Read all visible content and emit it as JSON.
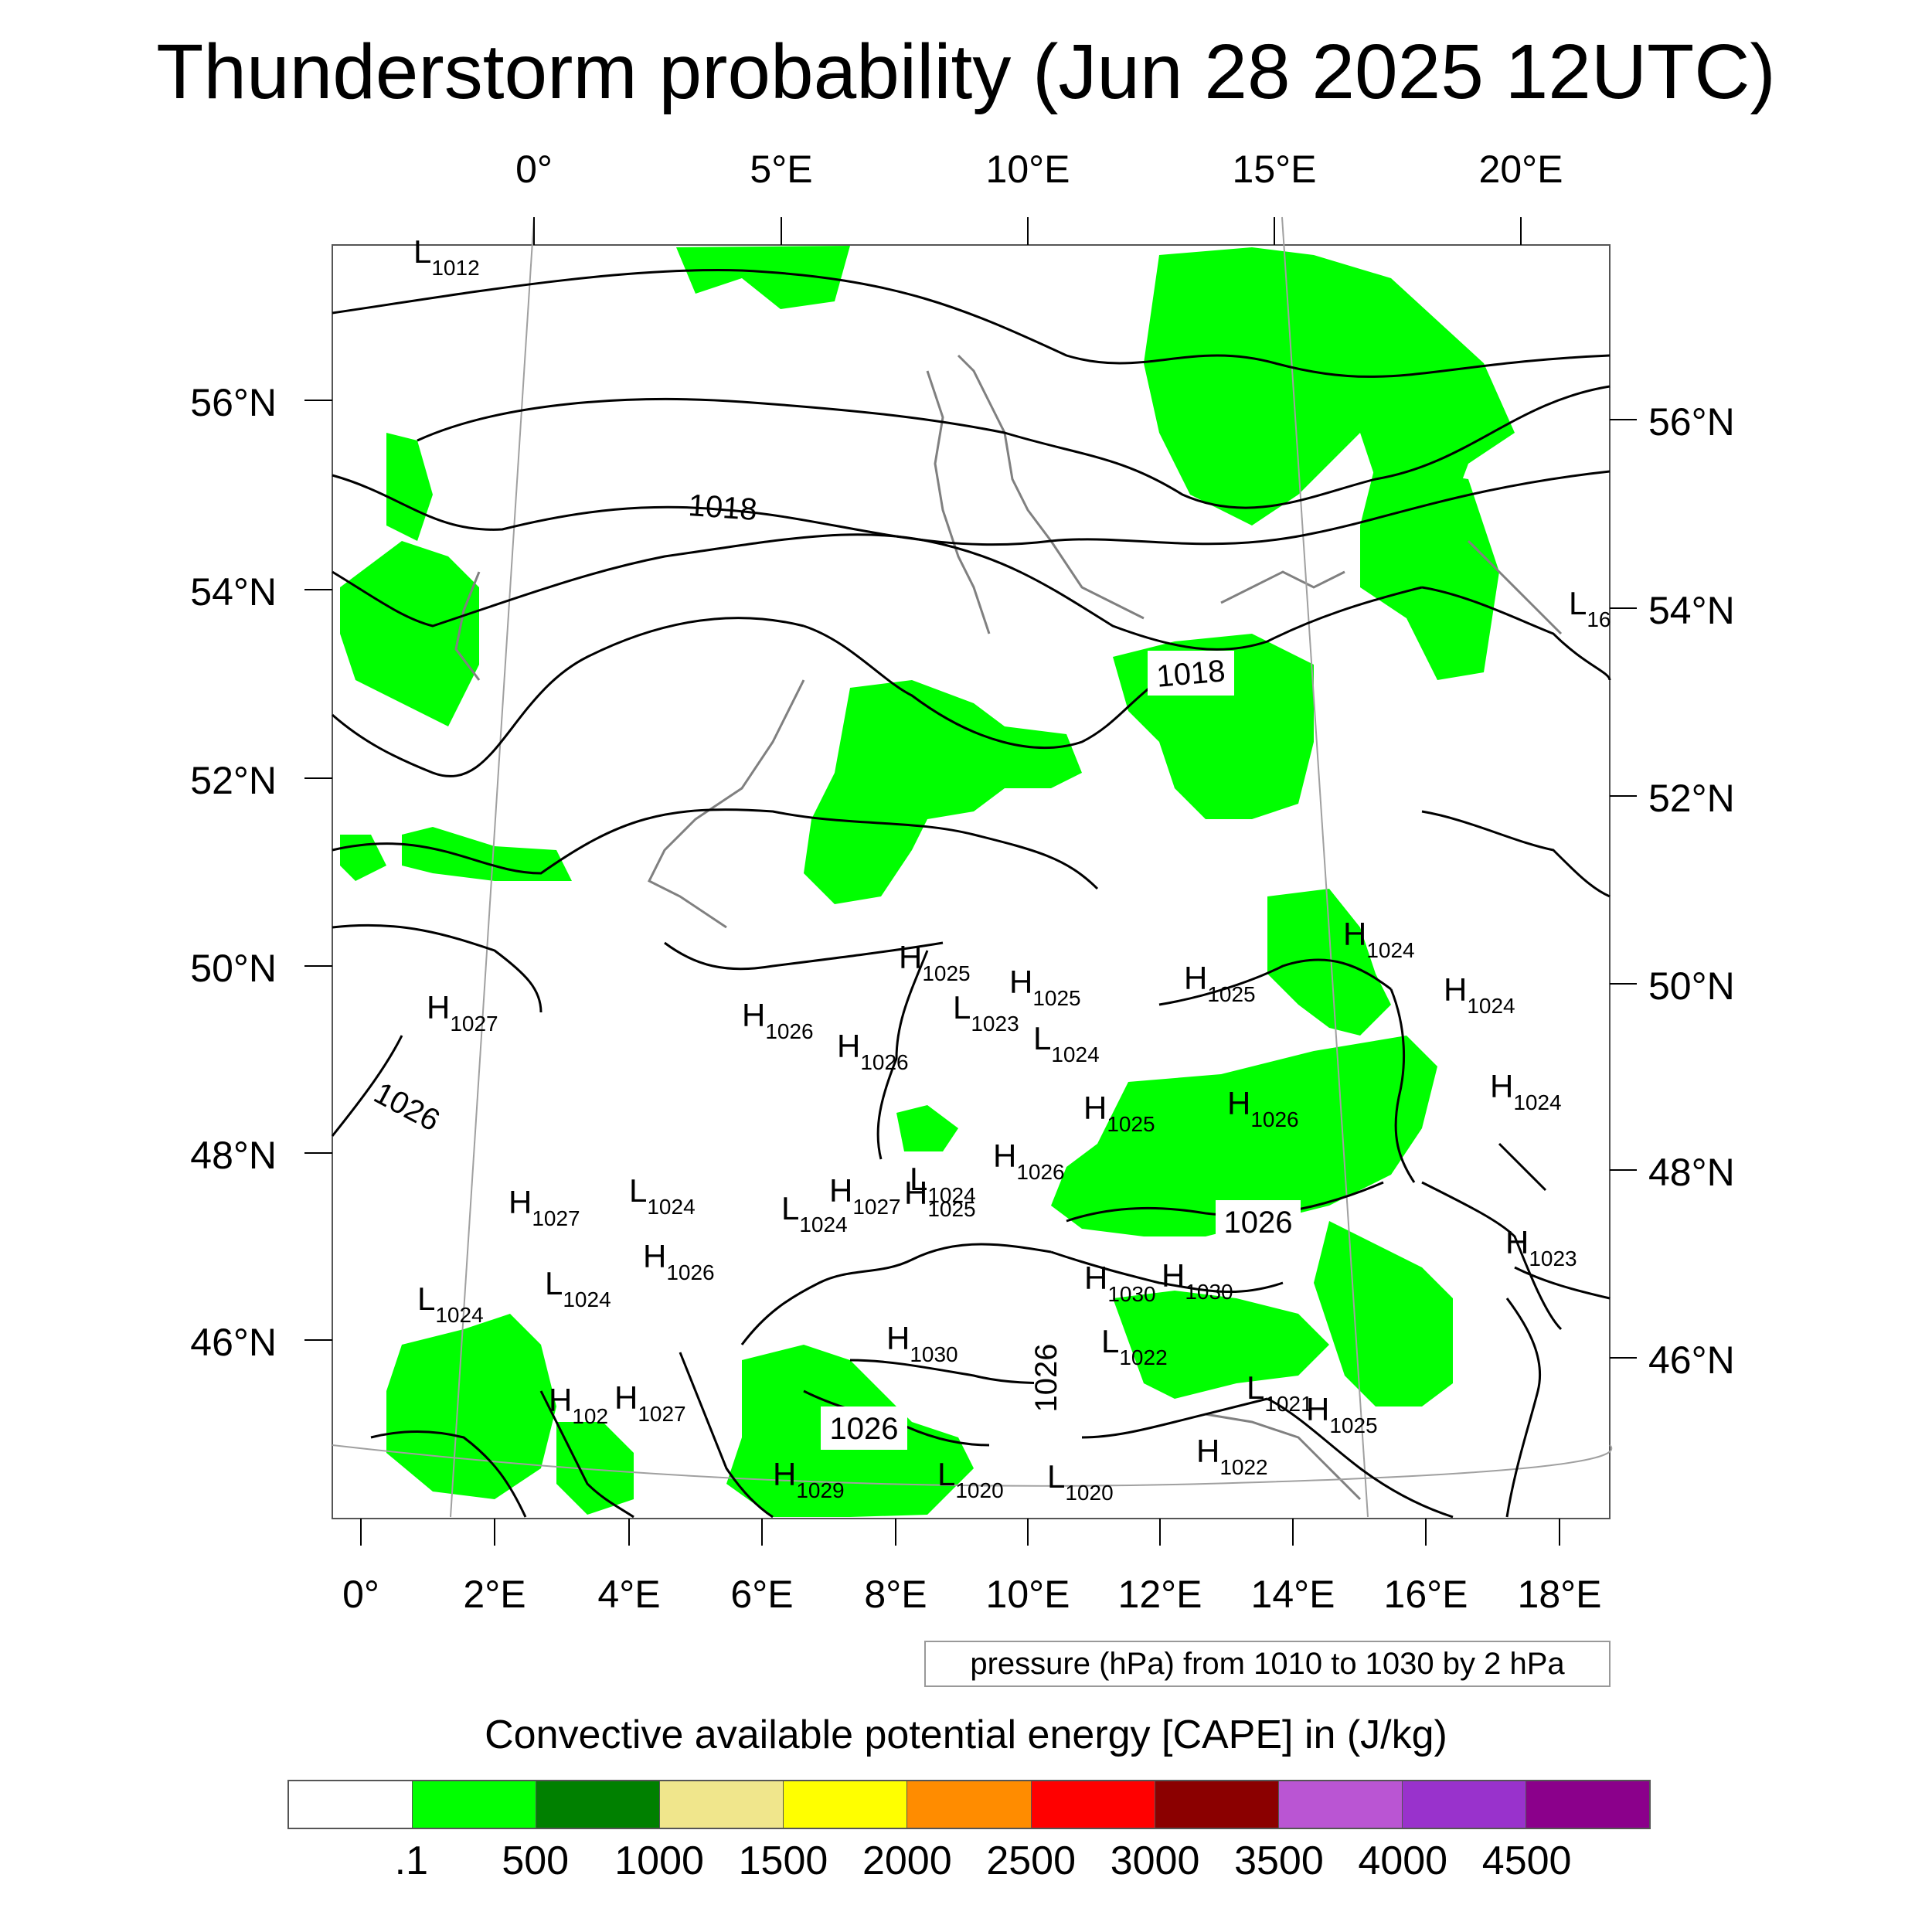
{
  "title": "Thunderstorm probability (Jun 28 2025 12UTC)",
  "top_lon_labels": [
    "0°",
    "5°E",
    "10°E",
    "15°E",
    "20°E"
  ],
  "bottom_lon_labels": [
    "0°",
    "2°E",
    "4°E",
    "6°E",
    "8°E",
    "10°E",
    "12°E",
    "14°E",
    "16°E",
    "18°E"
  ],
  "left_lat_labels": [
    "56°N",
    "54°N",
    "52°N",
    "50°N",
    "48°N",
    "46°N"
  ],
  "right_lat_labels": [
    "56°N",
    "54°N",
    "52°N",
    "50°N",
    "48°N",
    "46°N"
  ],
  "isobar_labels": [
    "1018",
    "1018",
    "1026",
    "1026",
    "1026",
    "1026"
  ],
  "pressure_centers": [
    {
      "type": "L",
      "value": "1012"
    },
    {
      "type": "L",
      "value": "16"
    },
    {
      "type": "H",
      "value": "1027"
    },
    {
      "type": "H",
      "value": "1026"
    },
    {
      "type": "H",
      "value": "1025"
    },
    {
      "type": "H",
      "value": "1026"
    },
    {
      "type": "L",
      "value": "1023"
    },
    {
      "type": "H",
      "value": "1025"
    },
    {
      "type": "L",
      "value": "1024"
    },
    {
      "type": "H",
      "value": "1025"
    },
    {
      "type": "H",
      "value": "1024"
    },
    {
      "type": "H",
      "value": "1024"
    },
    {
      "type": "H",
      "value": "1024"
    },
    {
      "type": "H",
      "value": "1025"
    },
    {
      "type": "H",
      "value": "1026"
    },
    {
      "type": "H",
      "value": "1026"
    },
    {
      "type": "H",
      "value": "1025"
    },
    {
      "type": "L",
      "value": "1024"
    },
    {
      "type": "L",
      "value": "1024"
    },
    {
      "type": "L",
      "value": "1024"
    },
    {
      "type": "H",
      "value": "1027"
    },
    {
      "type": "H",
      "value": "1027"
    },
    {
      "type": "H",
      "value": "1026"
    },
    {
      "type": "L",
      "value": "1024"
    },
    {
      "type": "L",
      "value": "1024"
    },
    {
      "type": "H",
      "value": "1030"
    },
    {
      "type": "H",
      "value": "1030"
    },
    {
      "type": "H",
      "value": "1023"
    },
    {
      "type": "H",
      "value": "1030"
    },
    {
      "type": "L",
      "value": "1022"
    },
    {
      "type": "H",
      "value": "102"
    },
    {
      "type": "H",
      "value": "1027"
    },
    {
      "type": "L",
      "value": "1021"
    },
    {
      "type": "H",
      "value": "1025"
    },
    {
      "type": "H",
      "value": "1022"
    },
    {
      "type": "H",
      "value": "1029"
    },
    {
      "type": "L",
      "value": "1020"
    },
    {
      "type": "L",
      "value": "1020"
    }
  ],
  "contour_note": "pressure (hPa) from 1010 to 1030 by 2 hPa",
  "colorbar": {
    "title": "Convective available potential energy [CAPE] in (J/kg)",
    "colors": [
      "#ffffff",
      "#00ff00",
      "#008000",
      "#f0e68c",
      "#ffff00",
      "#ff8c00",
      "#ff0000",
      "#8b0000",
      "#ba55d3",
      "#9932cc",
      "#8b008b"
    ],
    "labels": [
      ".1",
      "500",
      "1000",
      "1500",
      "2000",
      "2500",
      "3000",
      "3500",
      "4000",
      "4500"
    ]
  },
  "colors": {
    "cape_fill": "#00ff00",
    "isobar": "#000000",
    "coastline": "#808080",
    "gridline": "#a0a0a0"
  }
}
